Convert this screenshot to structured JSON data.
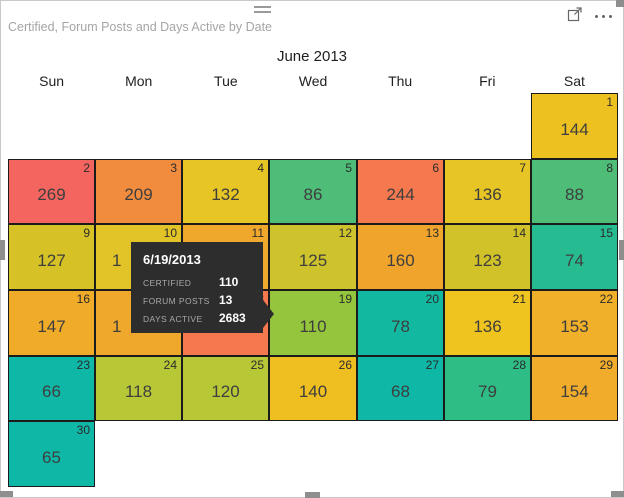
{
  "visual": {
    "title": "Certified, Forum Posts and Days Active by Date",
    "icons": {
      "drag_handle": "drag-handle-icon",
      "focus_mode": "focus-mode-icon",
      "more_options": "more-options-icon"
    }
  },
  "chart_data": {
    "type": "heatmap",
    "subtype": "calendar",
    "title": "Certified, Forum Posts and Days Active by Date",
    "month_label": "June 2013",
    "weekdays": [
      "Sun",
      "Mon",
      "Tue",
      "Wed",
      "Thu",
      "Fri",
      "Sat"
    ],
    "legend_position": "none",
    "grid_on": true,
    "cells": [
      {
        "day": "1",
        "row": 0,
        "col": 6,
        "value": "144",
        "color": "#EDC220"
      },
      {
        "day": "2",
        "row": 1,
        "col": 0,
        "value": "269",
        "color": "#F5655F"
      },
      {
        "day": "3",
        "row": 1,
        "col": 1,
        "value": "209",
        "color": "#F18B3D"
      },
      {
        "day": "4",
        "row": 1,
        "col": 2,
        "value": "132",
        "color": "#E6C524"
      },
      {
        "day": "5",
        "row": 1,
        "col": 3,
        "value": "86",
        "color": "#4EBD78"
      },
      {
        "day": "6",
        "row": 1,
        "col": 4,
        "value": "244",
        "color": "#F5784E"
      },
      {
        "day": "7",
        "row": 1,
        "col": 5,
        "value": "136",
        "color": "#E6C524"
      },
      {
        "day": "8",
        "row": 1,
        "col": 6,
        "value": "88",
        "color": "#4EBD78"
      },
      {
        "day": "9",
        "row": 2,
        "col": 0,
        "value": "127",
        "color": "#D6C226"
      },
      {
        "day": "10",
        "row": 2,
        "col": 1,
        "value": "1",
        "color": "#E2C428",
        "value_partial": true
      },
      {
        "day": "11",
        "row": 2,
        "col": 2,
        "value": "",
        "color": "#F0A82C"
      },
      {
        "day": "12",
        "row": 2,
        "col": 3,
        "value": "125",
        "color": "#CFC32D"
      },
      {
        "day": "13",
        "row": 2,
        "col": 4,
        "value": "160",
        "color": "#F0A42B"
      },
      {
        "day": "14",
        "row": 2,
        "col": 5,
        "value": "123",
        "color": "#D2C22A"
      },
      {
        "day": "15",
        "row": 2,
        "col": 6,
        "value": "74",
        "color": "#26BB91"
      },
      {
        "day": "16",
        "row": 3,
        "col": 0,
        "value": "147",
        "color": "#F0AC29"
      },
      {
        "day": "17",
        "row": 3,
        "col": 1,
        "value": "1",
        "color": "#F0A82C",
        "value_partial": true
      },
      {
        "day": "18",
        "row": 3,
        "col": 2,
        "value": "",
        "color": "#F5784E"
      },
      {
        "day": "19",
        "row": 3,
        "col": 3,
        "value": "110",
        "color": "#94C53C"
      },
      {
        "day": "20",
        "row": 3,
        "col": 4,
        "value": "78",
        "color": "#12B8A0"
      },
      {
        "day": "21",
        "row": 3,
        "col": 5,
        "value": "136",
        "color": "#EFC41F"
      },
      {
        "day": "22",
        "row": 3,
        "col": 6,
        "value": "153",
        "color": "#F0B029"
      },
      {
        "day": "23",
        "row": 4,
        "col": 0,
        "value": "66",
        "color": "#0EB7A6"
      },
      {
        "day": "24",
        "row": 4,
        "col": 1,
        "value": "118",
        "color": "#B7C736"
      },
      {
        "day": "25",
        "row": 4,
        "col": 2,
        "value": "120",
        "color": "#B7C736"
      },
      {
        "day": "26",
        "row": 4,
        "col": 3,
        "value": "140",
        "color": "#EFBE20"
      },
      {
        "day": "27",
        "row": 4,
        "col": 4,
        "value": "68",
        "color": "#0EB7A6"
      },
      {
        "day": "28",
        "row": 4,
        "col": 5,
        "value": "79",
        "color": "#2EBD85"
      },
      {
        "day": "29",
        "row": 4,
        "col": 6,
        "value": "154",
        "color": "#F0AC2A"
      },
      {
        "day": "30",
        "row": 5,
        "col": 0,
        "value": "65",
        "color": "#0EB7A6"
      }
    ],
    "tooltip": {
      "date": "6/19/2013",
      "rows": [
        {
          "label": "CERTIFIED",
          "value": "110"
        },
        {
          "label": "FORUM POSTS",
          "value": "13"
        },
        {
          "label": "DAYS ACTIVE",
          "value": "2683"
        }
      ]
    },
    "colors": {
      "low": "#0EB7A6",
      "mid": "#E6C524",
      "high": "#F5655F",
      "cell_border": "#1b1b1b",
      "tooltip_bg": "#2d2d2d"
    }
  }
}
